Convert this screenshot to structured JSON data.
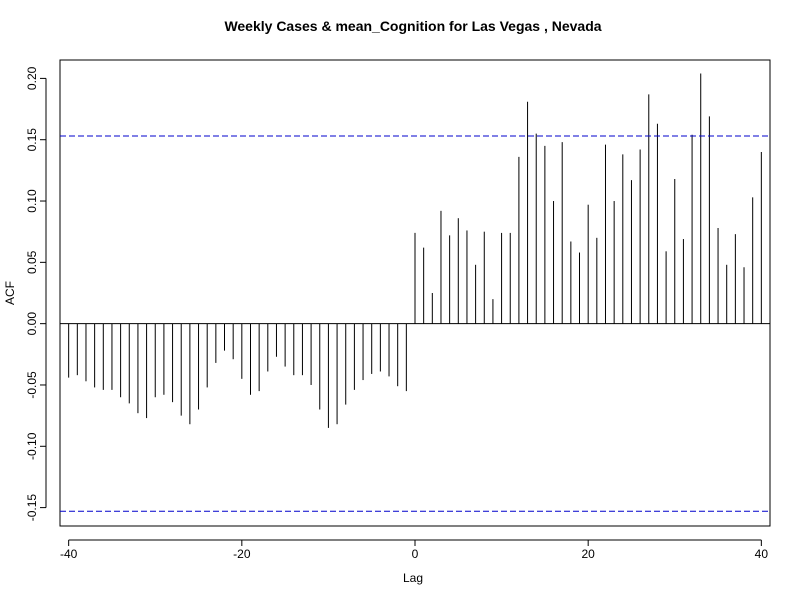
{
  "chart_data": {
    "type": "bar",
    "subtype": "acf-cross-correlation",
    "title": "Weekly Cases & mean_Cognition for Las Vegas , Nevada",
    "xlabel": "Lag",
    "ylabel": "ACF",
    "xlim": [
      -41,
      41
    ],
    "ylim": [
      -0.165,
      0.215
    ],
    "x_ticks": [
      -40,
      -20,
      0,
      20,
      40
    ],
    "y_ticks": [
      -0.15,
      -0.1,
      -0.05,
      0.0,
      0.05,
      0.1,
      0.15,
      0.2
    ],
    "x_tick_labels": [
      "-40",
      "-20",
      "0",
      "20",
      "40"
    ],
    "y_tick_labels": [
      "-0.15",
      "-0.10",
      "-0.05",
      "0.00",
      "0.05",
      "0.10",
      "0.15",
      "0.20"
    ],
    "confidence_band": 0.153,
    "colors": {
      "bars": "#000000",
      "confidence_line": "#0000cc",
      "zero_line": "#000000"
    },
    "lags": [
      -40,
      -39,
      -38,
      -37,
      -36,
      -35,
      -34,
      -33,
      -32,
      -31,
      -30,
      -29,
      -28,
      -27,
      -26,
      -25,
      -24,
      -23,
      -22,
      -21,
      -20,
      -19,
      -18,
      -17,
      -16,
      -15,
      -14,
      -13,
      -12,
      -11,
      -10,
      -9,
      -8,
      -7,
      -6,
      -5,
      -4,
      -3,
      -2,
      -1,
      0,
      1,
      2,
      3,
      4,
      5,
      6,
      7,
      8,
      9,
      10,
      11,
      12,
      13,
      14,
      15,
      16,
      17,
      18,
      19,
      20,
      21,
      22,
      23,
      24,
      25,
      26,
      27,
      28,
      29,
      30,
      31,
      32,
      33,
      34,
      35,
      36,
      37,
      38,
      39,
      40
    ],
    "values": [
      -0.044,
      -0.042,
      -0.047,
      -0.052,
      -0.054,
      -0.054,
      -0.06,
      -0.065,
      -0.073,
      -0.077,
      -0.06,
      -0.058,
      -0.064,
      -0.075,
      -0.082,
      -0.07,
      -0.052,
      -0.032,
      -0.022,
      -0.029,
      -0.045,
      -0.058,
      -0.055,
      -0.039,
      -0.027,
      -0.035,
      -0.042,
      -0.042,
      -0.05,
      -0.07,
      -0.085,
      -0.082,
      -0.066,
      -0.054,
      -0.046,
      -0.041,
      -0.039,
      -0.043,
      -0.051,
      -0.055,
      0.074,
      0.062,
      0.025,
      0.092,
      0.072,
      0.086,
      0.076,
      0.048,
      0.075,
      0.02,
      0.074,
      0.074,
      0.136,
      0.181,
      0.155,
      0.145,
      0.1,
      0.148,
      0.067,
      0.058,
      0.097,
      0.07,
      0.146,
      0.1,
      0.138,
      0.117,
      0.142,
      0.187,
      0.163,
      0.059,
      0.118,
      0.069,
      0.154,
      0.204,
      0.169,
      0.078,
      0.048,
      0.073,
      0.046,
      0.103,
      0.14
    ]
  }
}
